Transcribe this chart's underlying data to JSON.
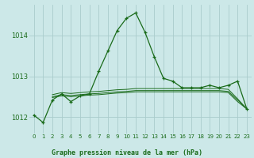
{
  "title": "Graphe pression niveau de la mer (hPa)",
  "bg_color": "#cce8e8",
  "grid_color": "#aacccc",
  "line_color": "#1a6b1a",
  "xlim": [
    -0.5,
    23.5
  ],
  "ylim": [
    1011.6,
    1014.75
  ],
  "yticks": [
    1012,
    1013,
    1014
  ],
  "xticks": [
    0,
    1,
    2,
    3,
    4,
    5,
    6,
    7,
    8,
    9,
    10,
    11,
    12,
    13,
    14,
    15,
    16,
    17,
    18,
    19,
    20,
    21,
    22,
    23
  ],
  "series_main": {
    "x": [
      0,
      1,
      2,
      3,
      4,
      5,
      6,
      7,
      8,
      9,
      10,
      11,
      12,
      13,
      14,
      15,
      16,
      17,
      18,
      19,
      20,
      21,
      22,
      23
    ],
    "y": [
      1012.05,
      1011.87,
      1012.42,
      1012.57,
      1012.38,
      1012.52,
      1012.57,
      1013.12,
      1013.62,
      1014.12,
      1014.42,
      1014.55,
      1014.08,
      1013.48,
      1012.95,
      1012.88,
      1012.72,
      1012.72,
      1012.72,
      1012.78,
      1012.72,
      1012.78,
      1012.88,
      1012.2
    ]
  },
  "series_flat1": {
    "x": [
      2,
      3,
      4,
      5,
      6,
      7,
      8,
      9,
      10,
      11,
      12,
      13,
      14,
      15,
      16,
      17,
      18,
      19,
      20,
      21,
      22,
      23
    ],
    "y": [
      1012.55,
      1012.6,
      1012.58,
      1012.6,
      1012.62,
      1012.63,
      1012.65,
      1012.67,
      1012.68,
      1012.7,
      1012.7,
      1012.7,
      1012.7,
      1012.7,
      1012.7,
      1012.7,
      1012.7,
      1012.7,
      1012.7,
      1012.68,
      1012.45,
      1012.2
    ]
  },
  "series_flat2": {
    "x": [
      2,
      3,
      4,
      5,
      6,
      7,
      8,
      9,
      10,
      11,
      12,
      13,
      14,
      15,
      16,
      17,
      18,
      19,
      20,
      21,
      22,
      23
    ],
    "y": [
      1012.5,
      1012.55,
      1012.53,
      1012.55,
      1012.57,
      1012.58,
      1012.6,
      1012.62,
      1012.63,
      1012.65,
      1012.65,
      1012.65,
      1012.65,
      1012.65,
      1012.65,
      1012.65,
      1012.65,
      1012.65,
      1012.65,
      1012.63,
      1012.42,
      1012.2
    ]
  },
  "series_flat3": {
    "x": [
      2,
      3,
      4,
      5,
      6,
      7,
      8,
      9,
      10,
      11,
      12,
      13,
      14,
      15,
      16,
      17,
      18,
      19,
      20,
      21,
      22,
      23
    ],
    "y": [
      1012.48,
      1012.52,
      1012.5,
      1012.52,
      1012.54,
      1012.55,
      1012.57,
      1012.59,
      1012.6,
      1012.62,
      1012.62,
      1012.62,
      1012.62,
      1012.62,
      1012.62,
      1012.62,
      1012.62,
      1012.62,
      1012.62,
      1012.6,
      1012.38,
      1012.2
    ]
  }
}
